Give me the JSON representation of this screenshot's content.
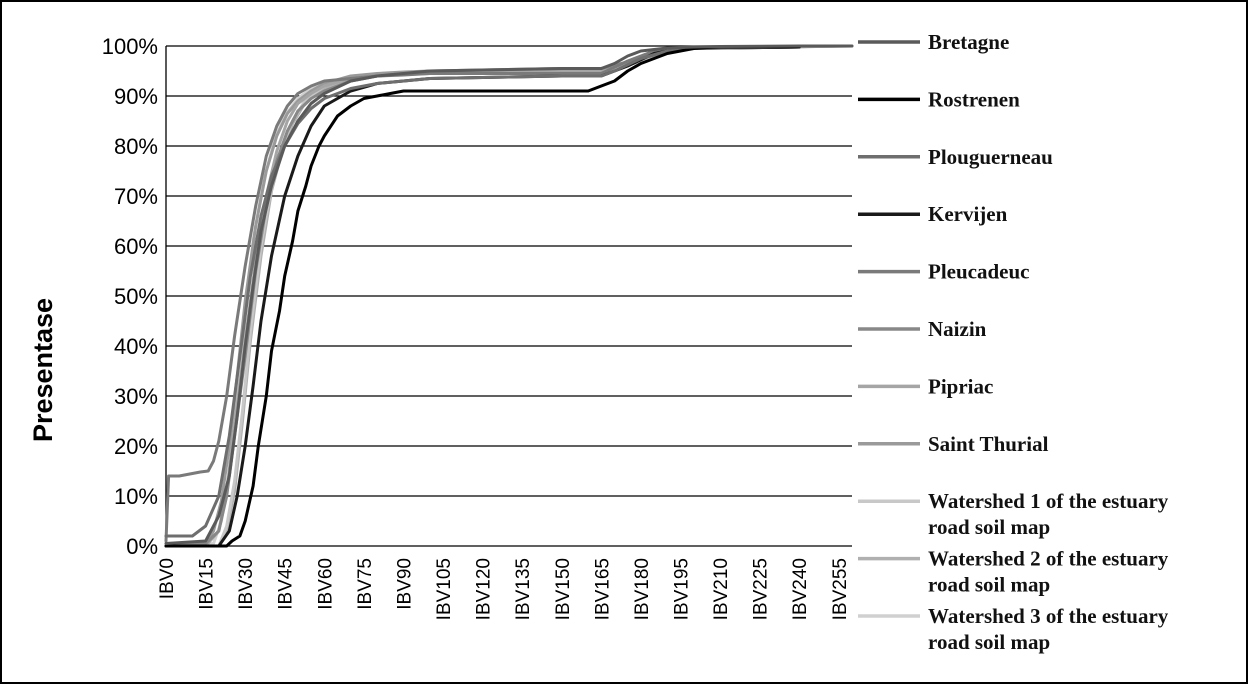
{
  "chart_data": {
    "type": "line",
    "title": "",
    "xlabel": "",
    "ylabel": "Presentase",
    "ylim": [
      0,
      100
    ],
    "yticks": [
      "0%",
      "10%",
      "20%",
      "30%",
      "40%",
      "50%",
      "60%",
      "70%",
      "80%",
      "90%",
      "100%"
    ],
    "x_tick_labels": [
      "IBV0",
      "IBV15",
      "IBV30",
      "IBV45",
      "IBV60",
      "IBV75",
      "IBV90",
      "IBV105",
      "IBV120",
      "IBV135",
      "IBV150",
      "IBV165",
      "IBV180",
      "IBV195",
      "IBV210",
      "IBV225",
      "IBV240",
      "IBV255"
    ],
    "x_tick_values": [
      0,
      15,
      30,
      45,
      60,
      75,
      90,
      105,
      120,
      135,
      150,
      165,
      180,
      195,
      210,
      225,
      240,
      255
    ],
    "xlim": [
      0,
      260
    ],
    "grid": "horizontal",
    "legend_position": "right",
    "series": [
      {
        "name": "Bretagne",
        "color": "#5a5a5a",
        "width": 3,
        "x": [
          0,
          15,
          20,
          24,
          27,
          30,
          33,
          36,
          40,
          45,
          50,
          55,
          60,
          70,
          80,
          90,
          100,
          120,
          150,
          165,
          170,
          175,
          180,
          190,
          200,
          210,
          240,
          260
        ],
        "y": [
          0.5,
          1,
          6,
          14,
          26,
          40,
          52,
          63,
          72,
          80,
          85,
          88.5,
          90.5,
          93,
          94,
          94.5,
          95,
          95.2,
          95.5,
          95.5,
          96.5,
          98,
          99,
          99.6,
          99.8,
          99.9,
          100,
          100
        ]
      },
      {
        "name": "Rostrenen",
        "color": "#000000",
        "width": 3,
        "x": [
          0,
          20,
          23,
          25,
          28,
          30,
          33,
          35,
          38,
          40,
          43,
          45,
          48,
          50,
          53,
          55,
          58,
          60,
          65,
          70,
          75,
          80,
          85,
          90,
          100,
          120,
          150,
          160,
          165,
          170,
          175,
          180,
          185,
          190,
          195,
          200,
          205,
          210,
          240
        ],
        "y": [
          0,
          0,
          0,
          1,
          2,
          5,
          12,
          20,
          30,
          39,
          47,
          54,
          61,
          67,
          72,
          76,
          80,
          82,
          86,
          88,
          89.5,
          90,
          90.5,
          91,
          91,
          91,
          91,
          91,
          92,
          93,
          95,
          96.5,
          97.5,
          98.5,
          99,
          99.5,
          99.7,
          99.8,
          99.8
        ]
      },
      {
        "name": "Plouguerneau",
        "color": "#6e6e6e",
        "width": 3,
        "x": [
          0,
          10,
          15,
          20,
          24,
          28,
          32,
          36,
          40,
          45,
          50,
          55,
          60,
          70,
          80,
          90,
          100,
          150,
          165,
          170,
          180,
          190,
          200,
          240
        ],
        "y": [
          2,
          2,
          4,
          10,
          22,
          38,
          54,
          66,
          74,
          80,
          84.5,
          87.5,
          89.5,
          91.5,
          92.5,
          93,
          93.5,
          94,
          94,
          95,
          97.5,
          99,
          99.5,
          99.8
        ]
      },
      {
        "name": "Kervijen",
        "color": "#1a1a1a",
        "width": 3,
        "x": [
          0,
          20,
          24,
          27,
          30,
          33,
          36,
          40,
          45,
          50,
          55,
          60,
          70,
          80,
          90,
          100,
          150,
          165,
          175,
          185,
          195,
          240
        ],
        "y": [
          0,
          0,
          3,
          10,
          20,
          32,
          45,
          58,
          70,
          78,
          84,
          88,
          91,
          92.5,
          93,
          93.5,
          94,
          94,
          96,
          98.5,
          99.5,
          99.8
        ]
      },
      {
        "name": "Pleucadeuc",
        "color": "#7a7a7a",
        "width": 3,
        "x": [
          0,
          1,
          5,
          10,
          13,
          16,
          18,
          20,
          23,
          26,
          30,
          34,
          38,
          42,
          46,
          50,
          55,
          60,
          70,
          80,
          90,
          100,
          130,
          150,
          165,
          175,
          185,
          195,
          240
        ],
        "y": [
          1,
          14,
          14,
          14.5,
          14.8,
          15,
          17,
          21,
          30,
          42,
          56,
          68,
          78,
          84,
          88,
          90.5,
          92,
          93,
          93.5,
          94,
          94.2,
          94.5,
          94.5,
          94.5,
          94.5,
          97,
          99,
          99.6,
          99.8
        ]
      },
      {
        "name": "Naizin",
        "color": "#888888",
        "width": 3,
        "x": [
          0,
          15,
          20,
          23,
          26,
          30,
          34,
          38,
          42,
          46,
          50,
          55,
          60,
          70,
          80,
          90,
          100,
          150,
          165,
          180,
          195,
          240
        ],
        "y": [
          0,
          0.5,
          3,
          10,
          22,
          38,
          55,
          68,
          77,
          83,
          87,
          89.5,
          91,
          93,
          94,
          94.5,
          95,
          95.5,
          95.5,
          97.5,
          99.5,
          99.8
        ]
      },
      {
        "name": "Pipriac",
        "color": "#a5a5a5",
        "width": 3,
        "x": [
          0,
          15,
          20,
          23,
          26,
          30,
          34,
          38,
          42,
          46,
          50,
          55,
          60,
          70,
          80,
          90,
          100,
          150,
          165,
          180,
          195,
          255
        ],
        "y": [
          0,
          0,
          3,
          11,
          24,
          41,
          57,
          70,
          79,
          85,
          88.5,
          90.5,
          92,
          93.5,
          94,
          94.5,
          95,
          95,
          95,
          97.5,
          99.5,
          100
        ]
      },
      {
        "name": "Saint Thurial",
        "color": "#9a9a9a",
        "width": 3,
        "x": [
          0,
          15,
          18,
          21,
          24,
          27,
          30,
          34,
          38,
          42,
          46,
          50,
          55,
          60,
          70,
          80,
          90,
          100,
          150,
          165,
          180,
          195,
          255
        ],
        "y": [
          0,
          0.5,
          3,
          9,
          20,
          34,
          49,
          64,
          75,
          82,
          86.5,
          89,
          91,
          92.5,
          94,
          94.5,
          94.8,
          95,
          95,
          95,
          97.5,
          99.5,
          100
        ]
      },
      {
        "name": "Watershed 1 of the estuary road soil map",
        "color": "#c8c8c8",
        "width": 3,
        "x": [
          0,
          20,
          23,
          26,
          29,
          32,
          36,
          40,
          44,
          48,
          52,
          56,
          60,
          70,
          80,
          90,
          100,
          150,
          165,
          180,
          195,
          260
        ],
        "y": [
          0,
          0,
          4,
          13,
          27,
          43,
          60,
          72,
          80,
          85,
          88.5,
          90.5,
          92,
          93.5,
          94,
          94.5,
          94.5,
          94.5,
          94.5,
          97,
          99.5,
          100
        ]
      },
      {
        "name": "Watershed 2 of the estuary road soil map",
        "color": "#b0b0b0",
        "width": 3,
        "x": [
          0,
          20,
          23,
          26,
          29,
          32,
          36,
          40,
          44,
          48,
          52,
          56,
          60,
          70,
          80,
          90,
          100,
          150,
          165,
          180,
          195,
          260
        ],
        "y": [
          0,
          0,
          3,
          11,
          25,
          41,
          58,
          71,
          79,
          84.5,
          88,
          90,
          91.5,
          93,
          94,
          94.3,
          94.5,
          94.5,
          94.5,
          97,
          99.5,
          100
        ]
      },
      {
        "name": "Watershed 3 of the estuary road soil map",
        "color": "#d0d0d0",
        "width": 3,
        "x": [
          0,
          18,
          21,
          24,
          27,
          30,
          33,
          37,
          41,
          45,
          50,
          55,
          60,
          70,
          80,
          90,
          100,
          150,
          165,
          180,
          195,
          260
        ],
        "y": [
          0,
          0.5,
          5,
          15,
          30,
          46,
          61,
          73,
          81,
          86,
          89.5,
          91.5,
          92.5,
          93.5,
          94,
          94.3,
          94.5,
          94.5,
          94.5,
          97,
          99.5,
          100
        ]
      }
    ]
  }
}
